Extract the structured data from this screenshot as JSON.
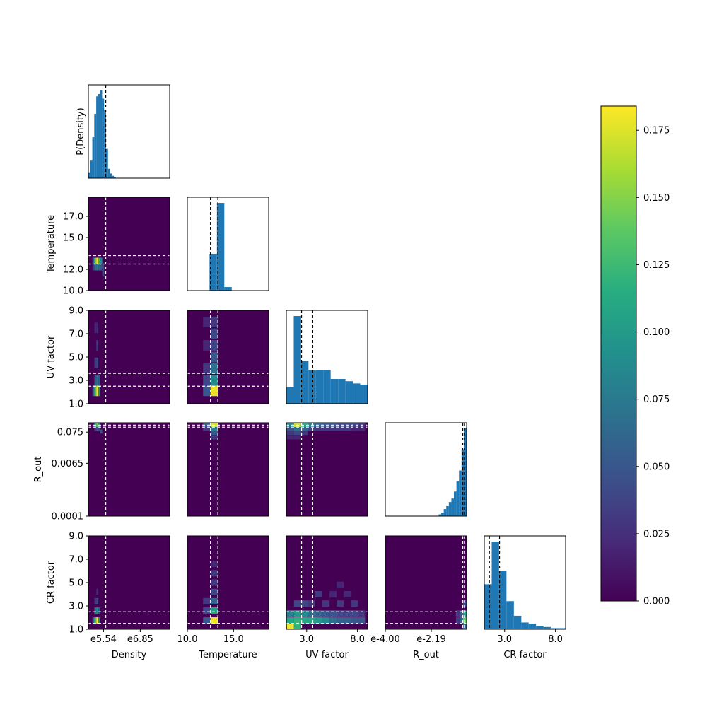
{
  "chart_data": {
    "type": "corner-plot",
    "params": [
      "Density",
      "Temperature",
      "UV factor",
      "R_out",
      "CR factor"
    ],
    "diag_ylabel_first": "P(Density)",
    "ticks": {
      "Density": {
        "labels": [
          "e5.54",
          "e6.85"
        ],
        "values": [
          5.54,
          6.85
        ],
        "range": [
          5.0,
          7.9
        ]
      },
      "Temperature": {
        "labels": [
          "10.0",
          "12.0",
          "15.0",
          "17.0"
        ],
        "values": [
          10.0,
          12.0,
          15.0,
          17.0
        ],
        "range": [
          10.0,
          18.8
        ]
      },
      "UV factor": {
        "labels": [
          "1.0",
          "3.0",
          "5.0",
          "7.0",
          "9.0"
        ],
        "values": [
          1.0,
          3.0,
          5.0,
          7.0,
          9.0
        ],
        "range": [
          1.0,
          9.0
        ]
      },
      "R_out": {
        "labels": [
          "0.0001",
          "0.0065",
          "0.075"
        ],
        "values": [
          -4.0,
          -2.19,
          -1.12
        ],
        "range": [
          -4.0,
          -0.8
        ]
      },
      "R_out_x": {
        "labels": [
          "e-4.00",
          "e-2.19"
        ],
        "values": [
          -4.0,
          -2.19
        ]
      },
      "CR factor": {
        "labels": [
          "1.0",
          "3.0",
          "5.0",
          "7.0",
          "9.0"
        ],
        "values": [
          1.0,
          3.0,
          5.0,
          7.0,
          9.0
        ],
        "range": [
          1.0,
          9.0
        ]
      },
      "UV factor_x": {
        "labels": [
          "3.0",
          "8.0"
        ],
        "values": [
          3.0,
          8.0
        ]
      },
      "CR factor_x": {
        "labels": [
          "3.0",
          "8.0"
        ],
        "values": [
          3.0,
          8.0
        ]
      }
    },
    "dashed_lines": {
      "Density": [
        5.6,
        5.62
      ],
      "Temperature": [
        12.5,
        13.3
      ],
      "UV factor": [
        2.5,
        3.6
      ],
      "R_out": [
        -0.95,
        -0.88
      ],
      "CR factor": [
        1.5,
        2.5
      ]
    },
    "histograms": {
      "Density": {
        "edges": [
          5.0,
          5.07,
          5.14,
          5.21,
          5.28,
          5.35,
          5.42,
          5.49,
          5.56,
          5.63,
          5.7,
          5.77,
          5.84,
          5.91,
          5.98
        ],
        "values": [
          0.05,
          0.15,
          0.35,
          0.55,
          0.7,
          0.72,
          0.75,
          0.68,
          0.58,
          0.25,
          0.08,
          0.04,
          0.02,
          0.01
        ]
      },
      "Temperature": {
        "edges": [
          10.0,
          10.8,
          11.6,
          12.4,
          13.2,
          14.0,
          14.8,
          15.6,
          16.4,
          17.2,
          18.0,
          18.8
        ],
        "values": [
          0,
          0,
          0.0,
          0.42,
          1.0,
          0.04,
          0,
          0,
          0,
          0,
          0
        ]
      },
      "UV factor": {
        "edges": [
          1.0,
          1.73,
          2.45,
          3.18,
          3.91,
          4.64,
          5.36,
          6.09,
          6.82,
          7.55,
          8.27,
          9.0
        ],
        "values": [
          0.15,
          0.78,
          0.38,
          0.3,
          0.3,
          0.3,
          0.22,
          0.22,
          0.2,
          0.18,
          0.17
        ]
      },
      "R_out": {
        "edges": [
          -4.0,
          -3.8,
          -3.6,
          -3.4,
          -3.2,
          -3.0,
          -2.8,
          -2.6,
          -2.4,
          -2.2,
          -2.0,
          -1.9,
          -1.8,
          -1.7,
          -1.6,
          -1.5,
          -1.4,
          -1.3,
          -1.2,
          -1.1,
          -1.0,
          -0.9,
          -0.8
        ],
        "values": [
          0,
          0,
          0,
          0,
          0,
          0,
          0,
          0,
          0,
          0,
          0,
          0.01,
          0.02,
          0.04,
          0.06,
          0.08,
          0.1,
          0.14,
          0.2,
          0.26,
          0.38,
          0.5
        ]
      },
      "CR factor": {
        "edges": [
          1.0,
          1.73,
          2.45,
          3.18,
          3.91,
          4.64,
          5.36,
          6.09,
          6.82,
          7.55,
          8.27,
          9.0
        ],
        "values": [
          0.4,
          0.78,
          0.52,
          0.25,
          0.12,
          0.06,
          0.05,
          0.03,
          0.02,
          0.01,
          0.01
        ]
      }
    },
    "colorbar": {
      "colormap": "viridis",
      "range": [
        0.0,
        0.184
      ],
      "tick_labels": [
        "0.000",
        "0.025",
        "0.050",
        "0.075",
        "0.100",
        "0.125",
        "0.150",
        "0.175"
      ],
      "tick_values": [
        0.0,
        0.025,
        0.05,
        0.075,
        0.1,
        0.125,
        0.15,
        0.175
      ]
    },
    "heatmaps": [
      {
        "x": "Density",
        "y": "Temperature",
        "cells": [
          {
            "x": 5.18,
            "y": 12.8,
            "v": 0.06
          },
          {
            "x": 5.25,
            "y": 12.8,
            "v": 0.14
          },
          {
            "x": 5.32,
            "y": 12.8,
            "v": 0.18
          },
          {
            "x": 5.39,
            "y": 12.8,
            "v": 0.12
          },
          {
            "x": 5.46,
            "y": 12.8,
            "v": 0.09
          },
          {
            "x": 5.18,
            "y": 12.2,
            "v": 0.03
          },
          {
            "x": 5.25,
            "y": 12.2,
            "v": 0.07
          },
          {
            "x": 5.32,
            "y": 12.2,
            "v": 0.08
          },
          {
            "x": 5.39,
            "y": 12.2,
            "v": 0.06
          },
          {
            "x": 5.46,
            "y": 12.2,
            "v": 0.05
          },
          {
            "x": 5.53,
            "y": 11.6,
            "v": 0.04
          },
          {
            "x": 5.53,
            "y": 12.2,
            "v": 0.03
          }
        ]
      },
      {
        "x": "Density",
        "y": "UV factor",
        "cells": [
          {
            "x": 5.18,
            "y": 2.1,
            "v": 0.06
          },
          {
            "x": 5.25,
            "y": 2.1,
            "v": 0.13
          },
          {
            "x": 5.32,
            "y": 2.1,
            "v": 0.18
          },
          {
            "x": 5.39,
            "y": 2.1,
            "v": 0.09
          },
          {
            "x": 5.25,
            "y": 3.0,
            "v": 0.05
          },
          {
            "x": 5.32,
            "y": 3.0,
            "v": 0.07
          },
          {
            "x": 5.39,
            "y": 3.0,
            "v": 0.05
          },
          {
            "x": 5.25,
            "y": 4.5,
            "v": 0.03
          },
          {
            "x": 5.32,
            "y": 4.5,
            "v": 0.04
          },
          {
            "x": 5.32,
            "y": 6.0,
            "v": 0.03
          },
          {
            "x": 5.32,
            "y": 7.5,
            "v": 0.02
          },
          {
            "x": 5.25,
            "y": 7.5,
            "v": 0.02
          }
        ]
      },
      {
        "x": "Temperature",
        "y": "UV factor",
        "cells": [
          {
            "x": 12.9,
            "y": 2.1,
            "v": 0.18
          },
          {
            "x": 12.1,
            "y": 2.1,
            "v": 0.05
          },
          {
            "x": 12.9,
            "y": 3.0,
            "v": 0.09
          },
          {
            "x": 12.1,
            "y": 3.0,
            "v": 0.04
          },
          {
            "x": 12.9,
            "y": 4.0,
            "v": 0.07
          },
          {
            "x": 12.1,
            "y": 4.0,
            "v": 0.03
          },
          {
            "x": 12.9,
            "y": 5.0,
            "v": 0.05
          },
          {
            "x": 12.9,
            "y": 6.0,
            "v": 0.04
          },
          {
            "x": 12.9,
            "y": 7.0,
            "v": 0.04
          },
          {
            "x": 12.9,
            "y": 8.0,
            "v": 0.03
          },
          {
            "x": 12.1,
            "y": 6.0,
            "v": 0.02
          },
          {
            "x": 12.1,
            "y": 8.0,
            "v": 0.02
          }
        ]
      },
      {
        "x": "Density",
        "y": "R_out",
        "cells": [
          {
            "x": 5.25,
            "y": -0.88,
            "v": 0.1
          },
          {
            "x": 5.32,
            "y": -0.88,
            "v": 0.14
          },
          {
            "x": 5.39,
            "y": -0.88,
            "v": 0.08
          },
          {
            "x": 5.32,
            "y": -1.02,
            "v": 0.05
          },
          {
            "x": 5.39,
            "y": -1.02,
            "v": 0.04
          },
          {
            "x": 5.46,
            "y": -1.1,
            "v": 0.05
          },
          {
            "x": 5.25,
            "y": -1.02,
            "v": 0.03
          }
        ]
      },
      {
        "x": "Temperature",
        "y": "R_out",
        "cells": [
          {
            "x": 12.9,
            "y": -0.88,
            "v": 0.17
          },
          {
            "x": 12.1,
            "y": -0.88,
            "v": 0.05
          },
          {
            "x": 12.9,
            "y": -1.02,
            "v": 0.08
          },
          {
            "x": 12.1,
            "y": -1.02,
            "v": 0.03
          },
          {
            "x": 12.9,
            "y": -1.15,
            "v": 0.05
          },
          {
            "x": 12.9,
            "y": -1.3,
            "v": 0.03
          }
        ]
      },
      {
        "x": "UV factor",
        "y": "R_out",
        "cells": [
          {
            "x": 1.4,
            "y": -0.88,
            "v": 0.08
          },
          {
            "x": 2.1,
            "y": -0.88,
            "v": 0.17
          },
          {
            "x": 2.8,
            "y": -0.88,
            "v": 0.11
          },
          {
            "x": 3.5,
            "y": -0.88,
            "v": 0.08
          },
          {
            "x": 4.2,
            "y": -0.88,
            "v": 0.06
          },
          {
            "x": 4.9,
            "y": -0.88,
            "v": 0.05
          },
          {
            "x": 5.6,
            "y": -0.88,
            "v": 0.05
          },
          {
            "x": 6.3,
            "y": -0.88,
            "v": 0.04
          },
          {
            "x": 7.0,
            "y": -0.88,
            "v": 0.04
          },
          {
            "x": 7.7,
            "y": -0.88,
            "v": 0.04
          },
          {
            "x": 8.4,
            "y": -0.88,
            "v": 0.03
          },
          {
            "x": 1.4,
            "y": -1.02,
            "v": 0.05
          },
          {
            "x": 2.1,
            "y": -1.02,
            "v": 0.07
          },
          {
            "x": 2.8,
            "y": -1.02,
            "v": 0.06
          },
          {
            "x": 3.5,
            "y": -1.02,
            "v": 0.04
          },
          {
            "x": 4.2,
            "y": -1.02,
            "v": 0.03
          },
          {
            "x": 4.9,
            "y": -1.02,
            "v": 0.03
          },
          {
            "x": 5.6,
            "y": -1.02,
            "v": 0.03
          },
          {
            "x": 6.3,
            "y": -1.02,
            "v": 0.03
          },
          {
            "x": 7.0,
            "y": -1.02,
            "v": 0.03
          },
          {
            "x": 7.7,
            "y": -1.02,
            "v": 0.02
          },
          {
            "x": 8.4,
            "y": -1.02,
            "v": 0.02
          },
          {
            "x": 1.4,
            "y": -1.15,
            "v": 0.03
          },
          {
            "x": 2.1,
            "y": -1.15,
            "v": 0.04
          },
          {
            "x": 2.8,
            "y": -1.15,
            "v": 0.03
          },
          {
            "x": 1.4,
            "y": -1.3,
            "v": 0.02
          },
          {
            "x": 2.1,
            "y": -1.3,
            "v": 0.02
          }
        ]
      },
      {
        "x": "Density",
        "y": "CR factor",
        "cells": [
          {
            "x": 5.18,
            "y": 1.75,
            "v": 0.06
          },
          {
            "x": 5.25,
            "y": 1.75,
            "v": 0.13
          },
          {
            "x": 5.32,
            "y": 1.75,
            "v": 0.18
          },
          {
            "x": 5.39,
            "y": 1.75,
            "v": 0.09
          },
          {
            "x": 5.25,
            "y": 2.6,
            "v": 0.07
          },
          {
            "x": 5.32,
            "y": 2.6,
            "v": 0.09
          },
          {
            "x": 5.39,
            "y": 2.6,
            "v": 0.05
          },
          {
            "x": 5.25,
            "y": 3.4,
            "v": 0.03
          },
          {
            "x": 5.32,
            "y": 3.4,
            "v": 0.04
          },
          {
            "x": 5.32,
            "y": 4.2,
            "v": 0.02
          }
        ]
      },
      {
        "x": "Temperature",
        "y": "CR factor",
        "cells": [
          {
            "x": 12.9,
            "y": 1.75,
            "v": 0.18
          },
          {
            "x": 12.1,
            "y": 1.75,
            "v": 0.05
          },
          {
            "x": 12.9,
            "y": 2.6,
            "v": 0.11
          },
          {
            "x": 12.1,
            "y": 2.6,
            "v": 0.04
          },
          {
            "x": 12.9,
            "y": 3.4,
            "v": 0.06
          },
          {
            "x": 12.1,
            "y": 3.4,
            "v": 0.03
          },
          {
            "x": 12.9,
            "y": 4.2,
            "v": 0.04
          },
          {
            "x": 12.9,
            "y": 5.0,
            "v": 0.03
          },
          {
            "x": 12.9,
            "y": 5.8,
            "v": 0.03
          },
          {
            "x": 12.9,
            "y": 6.6,
            "v": 0.02
          }
        ]
      },
      {
        "x": "UV factor",
        "y": "CR factor",
        "cells": [
          {
            "x": 1.4,
            "y": 1.25,
            "v": 0.18
          },
          {
            "x": 2.1,
            "y": 1.25,
            "v": 0.12
          },
          {
            "x": 1.4,
            "y": 1.75,
            "v": 0.11
          },
          {
            "x": 2.1,
            "y": 1.75,
            "v": 0.12
          },
          {
            "x": 2.8,
            "y": 1.75,
            "v": 0.11
          },
          {
            "x": 3.5,
            "y": 1.75,
            "v": 0.11
          },
          {
            "x": 4.2,
            "y": 1.75,
            "v": 0.1
          },
          {
            "x": 4.9,
            "y": 1.75,
            "v": 0.09
          },
          {
            "x": 5.6,
            "y": 1.75,
            "v": 0.07
          },
          {
            "x": 6.3,
            "y": 1.75,
            "v": 0.06
          },
          {
            "x": 7.0,
            "y": 1.75,
            "v": 0.06
          },
          {
            "x": 7.7,
            "y": 1.75,
            "v": 0.05
          },
          {
            "x": 8.4,
            "y": 1.75,
            "v": 0.05
          },
          {
            "x": 1.4,
            "y": 2.35,
            "v": 0.08
          },
          {
            "x": 2.1,
            "y": 2.35,
            "v": 0.1
          },
          {
            "x": 2.8,
            "y": 2.35,
            "v": 0.09
          },
          {
            "x": 3.5,
            "y": 2.35,
            "v": 0.07
          },
          {
            "x": 4.2,
            "y": 2.35,
            "v": 0.06
          },
          {
            "x": 4.9,
            "y": 2.35,
            "v": 0.05
          },
          {
            "x": 5.6,
            "y": 2.35,
            "v": 0.05
          },
          {
            "x": 6.3,
            "y": 2.35,
            "v": 0.04
          },
          {
            "x": 7.0,
            "y": 2.35,
            "v": 0.04
          },
          {
            "x": 7.7,
            "y": 2.35,
            "v": 0.04
          },
          {
            "x": 8.4,
            "y": 2.35,
            "v": 0.03
          },
          {
            "x": 2.1,
            "y": 3.2,
            "v": 0.04
          },
          {
            "x": 2.8,
            "y": 3.2,
            "v": 0.04
          },
          {
            "x": 3.5,
            "y": 3.2,
            "v": 0.03
          },
          {
            "x": 4.9,
            "y": 3.2,
            "v": 0.03
          },
          {
            "x": 6.3,
            "y": 3.2,
            "v": 0.03
          },
          {
            "x": 7.7,
            "y": 3.2,
            "v": 0.03
          },
          {
            "x": 4.2,
            "y": 4.0,
            "v": 0.03
          },
          {
            "x": 5.6,
            "y": 4.0,
            "v": 0.02
          },
          {
            "x": 7.0,
            "y": 4.0,
            "v": 0.02
          },
          {
            "x": 6.3,
            "y": 4.8,
            "v": 0.02
          }
        ]
      },
      {
        "x": "R_out",
        "y": "CR factor",
        "cells": [
          {
            "x": -0.88,
            "y": 1.75,
            "v": 0.14
          },
          {
            "x": -0.88,
            "y": 2.35,
            "v": 0.1
          },
          {
            "x": -1.02,
            "y": 1.75,
            "v": 0.06
          },
          {
            "x": -1.02,
            "y": 2.35,
            "v": 0.05
          },
          {
            "x": -0.88,
            "y": 1.25,
            "v": 0.06
          },
          {
            "x": -0.88,
            "y": 3.2,
            "v": 0.04
          },
          {
            "x": -1.15,
            "y": 1.75,
            "v": 0.03
          },
          {
            "x": -1.15,
            "y": 2.35,
            "v": 0.03
          }
        ]
      }
    ]
  }
}
